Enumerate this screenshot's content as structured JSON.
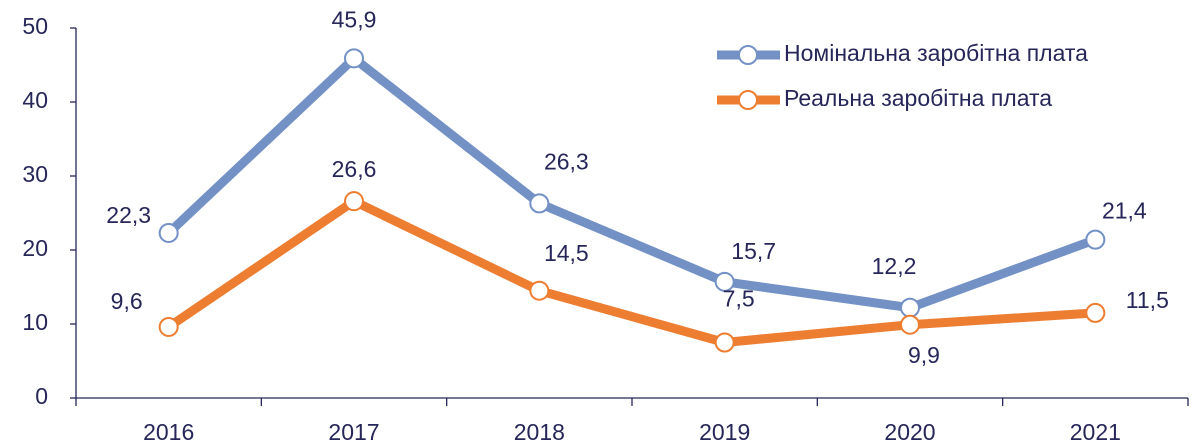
{
  "chart_data": {
    "type": "line",
    "categories": [
      "2016",
      "2017",
      "2018",
      "2019",
      "2020",
      "2021"
    ],
    "series": [
      {
        "name": "Номінальна заробітна плата",
        "color": "#7391c5",
        "values": [
          22.3,
          45.9,
          26.3,
          15.7,
          12.2,
          21.4
        ],
        "value_labels": [
          "22,3",
          "45,9",
          "26,3",
          "15,7",
          "12,2",
          "21,4"
        ]
      },
      {
        "name": "Реальна заробітна плата",
        "color": "#ed7d31",
        "values": [
          9.6,
          26.6,
          14.5,
          7.5,
          9.9,
          11.5
        ],
        "value_labels": [
          "9,6",
          "26,6",
          "14,5",
          "7,5",
          "9,9",
          "11,5"
        ]
      }
    ],
    "ylim": [
      0,
      50
    ],
    "yticks": [
      0,
      10,
      20,
      30,
      40,
      50
    ],
    "grid": false,
    "legend": "upper right"
  }
}
